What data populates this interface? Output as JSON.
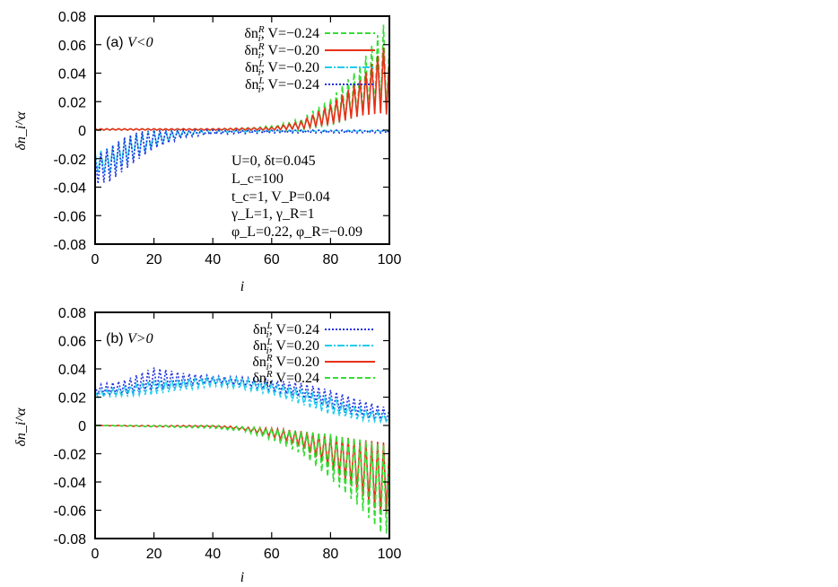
{
  "chart_data": [
    {
      "id": "a",
      "type": "line",
      "panel_label": "(a)",
      "panel_condition": "V<0",
      "xlabel": "i",
      "ylabel": "δn_i^α",
      "xlim": [
        0,
        100
      ],
      "ylim": [
        -0.08,
        0.08
      ],
      "xticks": [
        "0",
        "20",
        "40",
        "60",
        "80",
        "100"
      ],
      "yticks": [
        "-0.08",
        "-0.06",
        "-0.04",
        "-0.02",
        "0",
        "0.02",
        "0.04",
        "0.06",
        "0.08"
      ],
      "grid": false,
      "legend_position": "top-right",
      "params": {
        "line1": "U=0, δt=0.045",
        "line2": "L_c=100",
        "line3": "t_c=1, V_P=0.04",
        "line4": "γ_L=1, γ_R=1",
        "line5": "φ_L=0.22, φ_R=−0.09"
      },
      "series": [
        {
          "name": "δn_i^R, V=−0.24",
          "sym": "δn",
          "sup": "R",
          "sub": "i",
          "rest": ", V=−0.24",
          "color": "#33dd33",
          "dash": "6,3",
          "envelope": {
            "x": [
              0,
              20,
              40,
              60,
              70,
              80,
              90,
              98,
              100
            ],
            "upper": [
              0.001,
              0.001,
              0.001,
              0.003,
              0.008,
              0.022,
              0.045,
              0.074,
              0.06
            ],
            "lower": [
              0.0,
              0.0,
              0.0,
              0.0,
              0.0,
              0.003,
              0.01,
              0.015,
              0.01
            ]
          }
        },
        {
          "name": "δn_i^R, V=−0.20",
          "sym": "δn",
          "sup": "R",
          "sub": "i",
          "rest": ", V=−0.20",
          "color": "#e8301a",
          "dash": "",
          "envelope": {
            "x": [
              0,
              20,
              40,
              60,
              70,
              80,
              90,
              98,
              100
            ],
            "upper": [
              0.001,
              0.001,
              0.001,
              0.002,
              0.006,
              0.018,
              0.035,
              0.058,
              0.05
            ],
            "lower": [
              0.0,
              0.0,
              0.0,
              0.0,
              0.001,
              0.004,
              0.01,
              0.012,
              0.01
            ]
          }
        },
        {
          "name": "δn_i^L, V=−0.20",
          "sym": "δn",
          "sup": "L",
          "sub": "i",
          "rest": ", V=−0.20",
          "color": "#22ccee",
          "dash": "8,2,2,2",
          "envelope": {
            "x": [
              0,
              5,
              10,
              15,
              20,
              25,
              30,
              40,
              60,
              80,
              100
            ],
            "upper": [
              -0.016,
              -0.012,
              -0.006,
              -0.002,
              0.0,
              0.0,
              0.0,
              0.0,
              0.0,
              0.0,
              0.0
            ],
            "lower": [
              -0.03,
              -0.03,
              -0.024,
              -0.018,
              -0.012,
              -0.008,
              -0.004,
              -0.002,
              -0.001,
              -0.001,
              -0.001
            ]
          }
        },
        {
          "name": "δn_i^L, V=−0.24",
          "sym": "δn",
          "sup": "L",
          "sub": "i",
          "rest": ", V=−0.24",
          "color": "#2233dd",
          "dash": "2,2",
          "envelope": {
            "x": [
              0,
              5,
              10,
              15,
              20,
              25,
              30,
              40,
              60,
              80,
              100
            ],
            "upper": [
              -0.018,
              -0.012,
              -0.005,
              -0.001,
              0.0,
              0.0,
              0.0,
              0.0,
              0.0,
              0.0,
              0.0
            ],
            "lower": [
              -0.038,
              -0.036,
              -0.028,
              -0.02,
              -0.013,
              -0.009,
              -0.005,
              -0.003,
              -0.002,
              -0.002,
              -0.002
            ]
          }
        }
      ]
    },
    {
      "id": "b",
      "type": "line",
      "panel_label": "(b)",
      "panel_condition": "V>0",
      "xlabel": "i",
      "ylabel": "δn_i^α",
      "xlim": [
        0,
        100
      ],
      "ylim": [
        -0.08,
        0.08
      ],
      "xticks": [
        "0",
        "20",
        "40",
        "60",
        "80",
        "100"
      ],
      "yticks": [
        "-0.08",
        "-0.06",
        "-0.04",
        "-0.02",
        "0",
        "0.02",
        "0.04",
        "0.06",
        "0.08"
      ],
      "grid": false,
      "legend_position": "top-right",
      "series": [
        {
          "name": "δn_i^L, V=0.24",
          "sym": "δn",
          "sup": "L",
          "sub": "i",
          "rest": ", V=0.24",
          "color": "#2233dd",
          "dash": "2,2",
          "envelope": {
            "x": [
              0,
              10,
              20,
              30,
              40,
              50,
              60,
              70,
              80,
              90,
              100
            ],
            "upper": [
              0.028,
              0.032,
              0.041,
              0.037,
              0.035,
              0.034,
              0.032,
              0.03,
              0.025,
              0.018,
              0.012
            ],
            "lower": [
              0.022,
              0.022,
              0.025,
              0.027,
              0.03,
              0.028,
              0.025,
              0.02,
              0.012,
              0.006,
              0.002
            ]
          }
        },
        {
          "name": "δn_i^L, V=0.20",
          "sym": "δn",
          "sup": "L",
          "sub": "i",
          "rest": ", V=0.20",
          "color": "#22ccee",
          "dash": "8,2,2,2",
          "envelope": {
            "x": [
              0,
              10,
              20,
              30,
              40,
              50,
              60,
              70,
              80,
              90,
              100
            ],
            "upper": [
              0.024,
              0.027,
              0.032,
              0.033,
              0.034,
              0.033,
              0.03,
              0.026,
              0.02,
              0.012,
              0.008
            ],
            "lower": [
              0.02,
              0.021,
              0.022,
              0.025,
              0.028,
              0.026,
              0.022,
              0.015,
              0.008,
              0.004,
              0.002
            ]
          }
        },
        {
          "name": "δn_i^R, V=0.20",
          "sym": "δn",
          "sup": "R",
          "sub": "i",
          "rest": ", V=0.20",
          "color": "#e8301a",
          "dash": "",
          "envelope": {
            "x": [
              0,
              20,
              40,
              50,
              60,
              70,
              80,
              90,
              98,
              100
            ],
            "upper": [
              0.0,
              0.0,
              0.0,
              -0.001,
              -0.002,
              -0.004,
              -0.007,
              -0.01,
              -0.012,
              -0.01
            ],
            "lower": [
              0.0,
              -0.001,
              -0.001,
              -0.003,
              -0.008,
              -0.015,
              -0.03,
              -0.048,
              -0.065,
              -0.06
            ]
          }
        },
        {
          "name": "δn_i^R, V=0.24",
          "sym": "δn",
          "sup": "R",
          "sub": "i",
          "rest": ", V=0.24",
          "color": "#33dd33",
          "dash": "6,3",
          "envelope": {
            "x": [
              0,
              20,
              40,
              50,
              60,
              70,
              80,
              90,
              98,
              100
            ],
            "upper": [
              0.0,
              0.0,
              0.0,
              -0.001,
              -0.002,
              -0.004,
              -0.006,
              -0.01,
              -0.014,
              -0.012
            ],
            "lower": [
              0.0,
              -0.001,
              -0.002,
              -0.004,
              -0.01,
              -0.02,
              -0.038,
              -0.058,
              -0.078,
              -0.075
            ]
          }
        }
      ]
    }
  ]
}
